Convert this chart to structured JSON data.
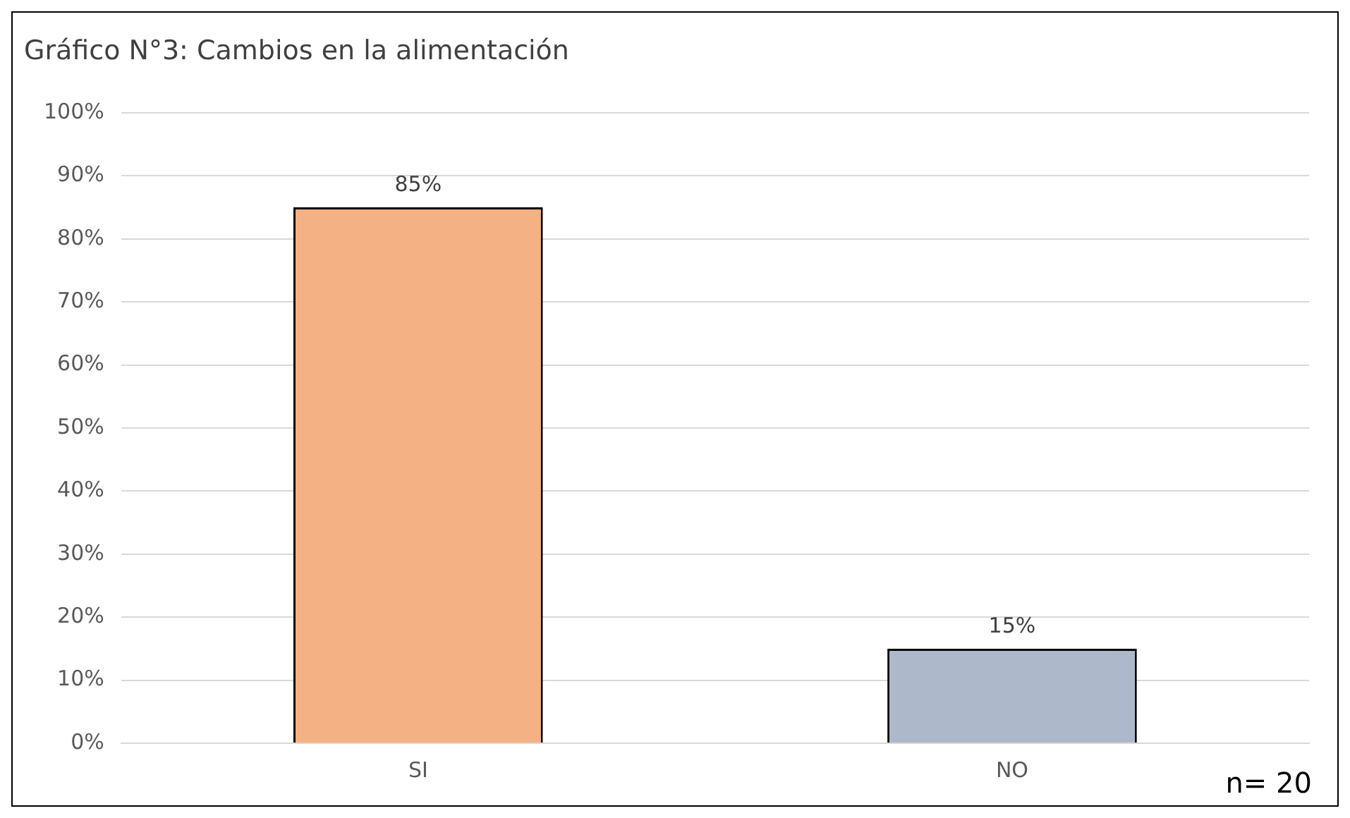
{
  "chart_data": {
    "type": "bar",
    "title": "Gráfico N°3: Cambios en la alimentación",
    "categories": [
      "SI",
      "NO"
    ],
    "values": [
      85,
      15
    ],
    "colors": [
      "#f4b183",
      "#adb9ca"
    ],
    "value_labels": [
      "85%",
      "15%"
    ],
    "ylim": [
      0,
      100
    ],
    "yticks": [
      {
        "value": 0,
        "label": "0%"
      },
      {
        "value": 10,
        "label": "10%"
      },
      {
        "value": 20,
        "label": "20%"
      },
      {
        "value": 30,
        "label": "30%"
      },
      {
        "value": 40,
        "label": "40%"
      },
      {
        "value": 50,
        "label": "50%"
      },
      {
        "value": 60,
        "label": "60%"
      },
      {
        "value": 70,
        "label": "70%"
      },
      {
        "value": 80,
        "label": "80%"
      },
      {
        "value": 90,
        "label": "90%"
      },
      {
        "value": 100,
        "label": "100%"
      }
    ],
    "grid": "y",
    "legend": false,
    "annotations": [
      "n= 20"
    ]
  }
}
